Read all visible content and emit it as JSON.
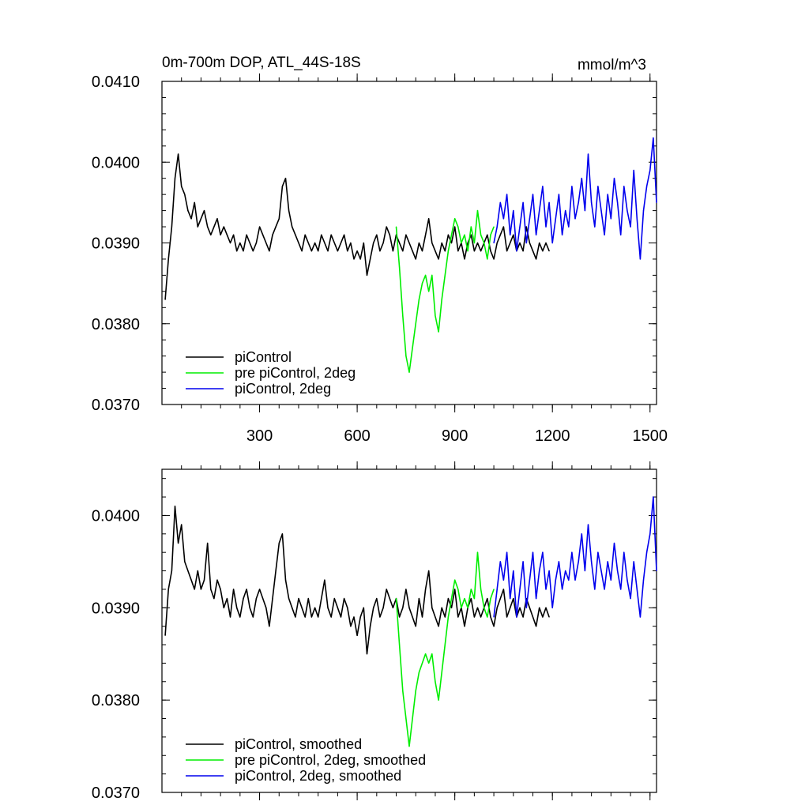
{
  "chart_data": [
    {
      "type": "line",
      "title": "0m-700m DOP, ATL_44S-18S",
      "units": "mmol/m^3",
      "xlim": [
        0,
        1520
      ],
      "ylim": [
        0.037,
        0.041
      ],
      "yticks": [
        "0.0370",
        "0.0380",
        "0.0390",
        "0.0400",
        "0.0410"
      ],
      "yticks_values": [
        0.037,
        0.038,
        0.039,
        0.04,
        0.041
      ],
      "xticks": [
        "300",
        "600",
        "900",
        "1200",
        "1500"
      ],
      "xticks_values": [
        300,
        600,
        900,
        1200,
        1500
      ],
      "series": [
        {
          "name": "piControl",
          "color": "#000000",
          "x": [
            10,
            20,
            30,
            40,
            50,
            60,
            70,
            80,
            90,
            100,
            110,
            120,
            130,
            140,
            150,
            160,
            170,
            180,
            190,
            200,
            210,
            220,
            230,
            240,
            250,
            260,
            270,
            280,
            290,
            300,
            310,
            320,
            330,
            340,
            350,
            360,
            370,
            380,
            390,
            400,
            410,
            420,
            430,
            440,
            450,
            460,
            470,
            480,
            490,
            500,
            510,
            520,
            530,
            540,
            550,
            560,
            570,
            580,
            590,
            600,
            610,
            620,
            630,
            640,
            650,
            660,
            670,
            680,
            690,
            700,
            710,
            720,
            730,
            740,
            750,
            760,
            770,
            780,
            790,
            800,
            810,
            820,
            830,
            840,
            850,
            860,
            870,
            880,
            890,
            900,
            910,
            920,
            930,
            940,
            950,
            960,
            970,
            980,
            990,
            1000,
            1010,
            1020,
            1030,
            1040,
            1050,
            1060,
            1070,
            1080,
            1090,
            1100,
            1110,
            1120,
            1130,
            1140,
            1150,
            1160,
            1170,
            1180,
            1190
          ],
          "values": [
            0.0383,
            0.0388,
            0.0392,
            0.0398,
            0.0401,
            0.0397,
            0.0396,
            0.0394,
            0.0393,
            0.0395,
            0.0392,
            0.0393,
            0.0394,
            0.0392,
            0.0391,
            0.0392,
            0.0393,
            0.0391,
            0.0392,
            0.0391,
            0.039,
            0.0391,
            0.0389,
            0.039,
            0.0389,
            0.0391,
            0.039,
            0.0389,
            0.039,
            0.0392,
            0.0391,
            0.039,
            0.0389,
            0.0391,
            0.0392,
            0.0393,
            0.0397,
            0.0398,
            0.0394,
            0.0392,
            0.0391,
            0.039,
            0.0389,
            0.0391,
            0.039,
            0.0389,
            0.039,
            0.0389,
            0.0391,
            0.039,
            0.0389,
            0.0391,
            0.039,
            0.0389,
            0.039,
            0.0391,
            0.0389,
            0.039,
            0.0388,
            0.0389,
            0.0388,
            0.039,
            0.0386,
            0.0388,
            0.039,
            0.0391,
            0.0389,
            0.039,
            0.0392,
            0.0391,
            0.0389,
            0.0391,
            0.039,
            0.0389,
            0.0391,
            0.039,
            0.0389,
            0.0388,
            0.039,
            0.0389,
            0.0391,
            0.0393,
            0.039,
            0.0389,
            0.0388,
            0.039,
            0.0389,
            0.0391,
            0.039,
            0.0392,
            0.0389,
            0.039,
            0.0388,
            0.039,
            0.0391,
            0.0389,
            0.039,
            0.0389,
            0.039,
            0.0391,
            0.0389,
            0.0388,
            0.039,
            0.0391,
            0.0392,
            0.0389,
            0.039,
            0.0391,
            0.0389,
            0.039,
            0.0389,
            0.0392,
            0.039,
            0.0389,
            0.0388,
            0.039,
            0.0389,
            0.039,
            0.0389
          ]
        },
        {
          "name": "pre piControl, 2deg",
          "color": "#00ee00",
          "x": [
            720,
            730,
            740,
            750,
            760,
            770,
            780,
            790,
            800,
            810,
            820,
            830,
            840,
            850,
            860,
            870,
            880,
            890,
            900,
            910,
            920,
            930,
            940,
            950,
            960,
            970,
            980,
            990,
            1000,
            1010,
            1020
          ],
          "values": [
            0.0392,
            0.0387,
            0.0381,
            0.0376,
            0.0374,
            0.0377,
            0.038,
            0.0383,
            0.0385,
            0.0386,
            0.0384,
            0.0386,
            0.0381,
            0.0379,
            0.0383,
            0.0386,
            0.0389,
            0.0391,
            0.0393,
            0.0392,
            0.039,
            0.0391,
            0.0389,
            0.0392,
            0.039,
            0.0394,
            0.0391,
            0.039,
            0.0388,
            0.0391,
            0.0392
          ]
        },
        {
          "name": "piControl, 2deg",
          "color": "#0000ee",
          "x": [
            1020,
            1030,
            1040,
            1050,
            1060,
            1070,
            1080,
            1090,
            1100,
            1110,
            1120,
            1130,
            1140,
            1150,
            1160,
            1170,
            1180,
            1190,
            1200,
            1210,
            1220,
            1230,
            1240,
            1250,
            1260,
            1270,
            1280,
            1290,
            1300,
            1310,
            1320,
            1330,
            1340,
            1350,
            1360,
            1370,
            1380,
            1390,
            1400,
            1410,
            1420,
            1430,
            1440,
            1450,
            1460,
            1470,
            1480,
            1490,
            1500,
            1510,
            1520
          ],
          "values": [
            0.039,
            0.0392,
            0.0395,
            0.0393,
            0.0396,
            0.0391,
            0.0394,
            0.0389,
            0.0392,
            0.0395,
            0.039,
            0.0393,
            0.0396,
            0.0391,
            0.0394,
            0.0397,
            0.0392,
            0.0395,
            0.039,
            0.0393,
            0.0396,
            0.0391,
            0.0394,
            0.0392,
            0.0397,
            0.0393,
            0.0395,
            0.0398,
            0.0394,
            0.0401,
            0.0395,
            0.0392,
            0.0397,
            0.0394,
            0.0391,
            0.0396,
            0.0393,
            0.0398,
            0.0395,
            0.0391,
            0.0397,
            0.0394,
            0.0392,
            0.0399,
            0.0393,
            0.0388,
            0.0394,
            0.0397,
            0.0399,
            0.0403,
            0.0395
          ]
        }
      ]
    },
    {
      "type": "line",
      "xlim": [
        0,
        1520
      ],
      "ylim": [
        0.037,
        0.0405
      ],
      "yticks": [
        "0.0370",
        "0.0380",
        "0.0390",
        "0.0400"
      ],
      "yticks_values": [
        0.037,
        0.038,
        0.039,
        0.04
      ],
      "xticks_values": [
        300,
        600,
        900,
        1200,
        1500
      ],
      "series": [
        {
          "name": "piControl, smoothed",
          "color": "#000000",
          "x": [
            10,
            20,
            30,
            40,
            50,
            60,
            70,
            80,
            90,
            100,
            110,
            120,
            130,
            140,
            150,
            160,
            170,
            180,
            190,
            200,
            210,
            220,
            230,
            240,
            250,
            260,
            270,
            280,
            290,
            300,
            310,
            320,
            330,
            340,
            350,
            360,
            370,
            380,
            390,
            400,
            410,
            420,
            430,
            440,
            450,
            460,
            470,
            480,
            490,
            500,
            510,
            520,
            530,
            540,
            550,
            560,
            570,
            580,
            590,
            600,
            610,
            620,
            630,
            640,
            650,
            660,
            670,
            680,
            690,
            700,
            710,
            720,
            730,
            740,
            750,
            760,
            770,
            780,
            790,
            800,
            810,
            820,
            830,
            840,
            850,
            860,
            870,
            880,
            890,
            900,
            910,
            920,
            930,
            940,
            950,
            960,
            970,
            980,
            990,
            1000,
            1010,
            1020,
            1030,
            1040,
            1050,
            1060,
            1070,
            1080,
            1090,
            1100,
            1110,
            1120,
            1130,
            1140,
            1150,
            1160,
            1170,
            1180,
            1190
          ],
          "values": [
            0.0387,
            0.0392,
            0.0394,
            0.0401,
            0.0397,
            0.0399,
            0.0395,
            0.0394,
            0.0393,
            0.0392,
            0.0394,
            0.0392,
            0.0393,
            0.0397,
            0.0392,
            0.0391,
            0.0393,
            0.0392,
            0.039,
            0.0391,
            0.0389,
            0.0392,
            0.039,
            0.0389,
            0.0391,
            0.0392,
            0.039,
            0.0389,
            0.0391,
            0.0392,
            0.0391,
            0.039,
            0.0388,
            0.0391,
            0.0394,
            0.0397,
            0.0398,
            0.0393,
            0.0391,
            0.039,
            0.0389,
            0.0391,
            0.039,
            0.0389,
            0.0391,
            0.0389,
            0.039,
            0.0389,
            0.0391,
            0.0393,
            0.039,
            0.0389,
            0.0391,
            0.039,
            0.0389,
            0.0391,
            0.039,
            0.0388,
            0.0389,
            0.0387,
            0.0389,
            0.039,
            0.0385,
            0.0388,
            0.039,
            0.0391,
            0.0389,
            0.039,
            0.0392,
            0.0391,
            0.039,
            0.0391,
            0.0389,
            0.039,
            0.0392,
            0.039,
            0.0389,
            0.0388,
            0.0391,
            0.0389,
            0.0392,
            0.0394,
            0.039,
            0.0389,
            0.0388,
            0.039,
            0.0389,
            0.0391,
            0.039,
            0.0392,
            0.0389,
            0.039,
            0.0388,
            0.039,
            0.0391,
            0.0389,
            0.039,
            0.0389,
            0.039,
            0.0391,
            0.0389,
            0.0388,
            0.039,
            0.0391,
            0.0392,
            0.0389,
            0.039,
            0.0391,
            0.0389,
            0.039,
            0.0389,
            0.0391,
            0.039,
            0.0389,
            0.0388,
            0.039,
            0.0389,
            0.039,
            0.0389
          ]
        },
        {
          "name": "pre piControl, 2deg, smoothed",
          "color": "#00ee00",
          "x": [
            720,
            730,
            740,
            750,
            760,
            770,
            780,
            790,
            800,
            810,
            820,
            830,
            840,
            850,
            860,
            870,
            880,
            890,
            900,
            910,
            920,
            930,
            940,
            950,
            960,
            970,
            980,
            990,
            1000,
            1010,
            1020
          ],
          "values": [
            0.0391,
            0.0386,
            0.0381,
            0.0378,
            0.0375,
            0.0378,
            0.0381,
            0.0383,
            0.0384,
            0.0385,
            0.0384,
            0.0385,
            0.0382,
            0.038,
            0.0383,
            0.0386,
            0.0389,
            0.0391,
            0.0393,
            0.0392,
            0.039,
            0.0391,
            0.039,
            0.0392,
            0.0391,
            0.0396,
            0.0392,
            0.039,
            0.0389,
            0.0391,
            0.0392
          ]
        },
        {
          "name": "piControl, 2deg, smoothed",
          "color": "#0000ee",
          "x": [
            1020,
            1030,
            1040,
            1050,
            1060,
            1070,
            1080,
            1090,
            1100,
            1110,
            1120,
            1130,
            1140,
            1150,
            1160,
            1170,
            1180,
            1190,
            1200,
            1210,
            1220,
            1230,
            1240,
            1250,
            1260,
            1270,
            1280,
            1290,
            1300,
            1310,
            1320,
            1330,
            1340,
            1350,
            1360,
            1370,
            1380,
            1390,
            1400,
            1410,
            1420,
            1430,
            1440,
            1450,
            1460,
            1470,
            1480,
            1490,
            1500,
            1510,
            1520
          ],
          "values": [
            0.0389,
            0.0392,
            0.0395,
            0.0393,
            0.0396,
            0.0391,
            0.0394,
            0.0389,
            0.0392,
            0.0395,
            0.039,
            0.0393,
            0.0396,
            0.0391,
            0.0394,
            0.0396,
            0.0392,
            0.0394,
            0.039,
            0.0393,
            0.0395,
            0.0392,
            0.0394,
            0.0393,
            0.0396,
            0.0393,
            0.0395,
            0.0398,
            0.0394,
            0.0399,
            0.0395,
            0.0392,
            0.0396,
            0.0394,
            0.0392,
            0.0395,
            0.0393,
            0.0397,
            0.0394,
            0.0392,
            0.0396,
            0.0393,
            0.0391,
            0.0395,
            0.0392,
            0.0389,
            0.0393,
            0.0396,
            0.0398,
            0.0402,
            0.0394
          ]
        }
      ]
    }
  ]
}
